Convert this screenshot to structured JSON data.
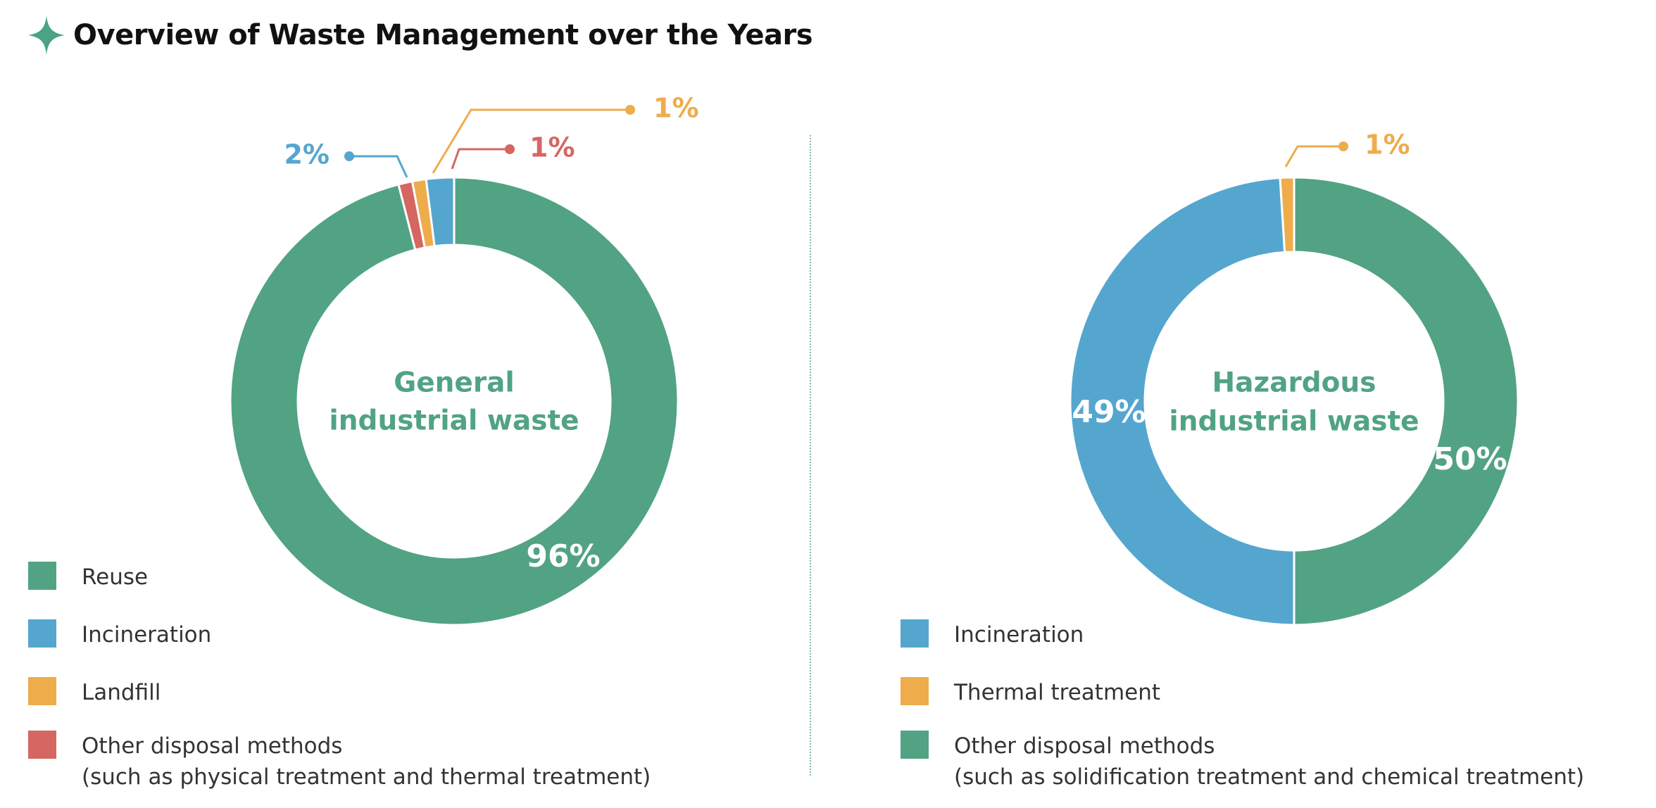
{
  "header": {
    "title": "Overview of Waste Management over the Years",
    "icon": "sparkle-star-icon",
    "icon_color": "#4aa383"
  },
  "colors": {
    "green": "#51a383",
    "blue": "#55a6cf",
    "orange": "#eeac4b",
    "red": "#d56662",
    "center_text": "#51a383",
    "divider": "#7fb9b4"
  },
  "chart_data": [
    {
      "type": "pie",
      "title": "General industrial waste",
      "center_label_lines": [
        "General",
        "industrial waste"
      ],
      "slices": [
        {
          "label": "Reuse",
          "value": 96,
          "display": "96%",
          "color": "#51a383"
        },
        {
          "label": "Incineration",
          "value": 2,
          "display": "2%",
          "color": "#55a6cf"
        },
        {
          "label": "Landfill",
          "value": 1,
          "display": "1%",
          "color": "#eeac4b"
        },
        {
          "label": "Other disposal methods",
          "value": 1,
          "display": "1%",
          "color": "#d56662"
        }
      ],
      "legend": [
        {
          "label": "Reuse",
          "sub": "",
          "color": "#51a383"
        },
        {
          "label": "Incineration",
          "sub": "",
          "color": "#55a6cf"
        },
        {
          "label": "Landfill",
          "sub": "",
          "color": "#eeac4b"
        },
        {
          "label": "Other disposal methods",
          "sub": "(such as physical treatment and thermal treatment)",
          "color": "#d56662"
        }
      ]
    },
    {
      "type": "pie",
      "title": "Hazardous industrial waste",
      "center_label_lines": [
        "Hazardous",
        "industrial waste"
      ],
      "slices": [
        {
          "label": "Other disposal methods",
          "value": 50,
          "display": "50%",
          "color": "#51a383"
        },
        {
          "label": "Incineration",
          "value": 49,
          "display": "49%",
          "color": "#55a6cf"
        },
        {
          "label": "Thermal treatment",
          "value": 1,
          "display": "1%",
          "color": "#eeac4b"
        }
      ],
      "legend": [
        {
          "label": "Incineration",
          "sub": "",
          "color": "#55a6cf"
        },
        {
          "label": "Thermal treatment",
          "sub": "",
          "color": "#eeac4b"
        },
        {
          "label": "Other disposal methods",
          "sub": "(such as solidification treatment and chemical treatment)",
          "color": "#51a383"
        }
      ]
    }
  ]
}
